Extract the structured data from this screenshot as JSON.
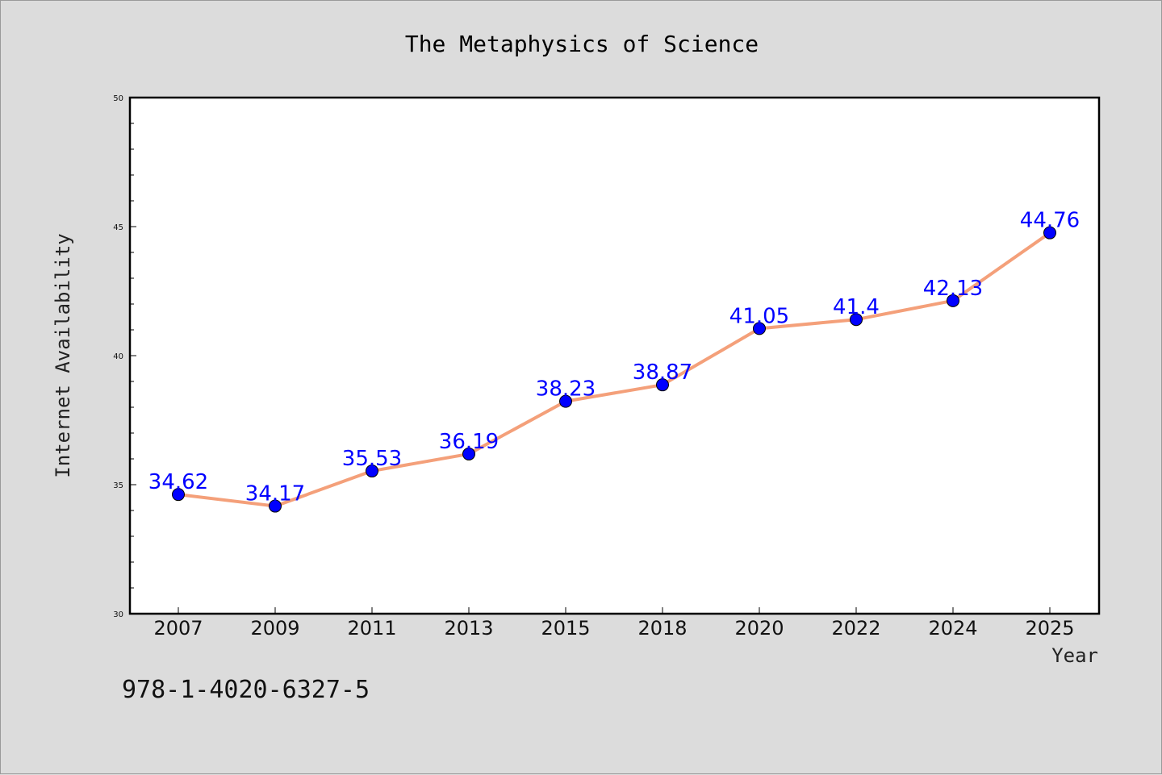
{
  "chart_data": {
    "type": "line",
    "title": "The Metaphysics of Science",
    "xlabel": "Year",
    "ylabel": "Internet Availability",
    "categories": [
      "2007",
      "2009",
      "2011",
      "2013",
      "2015",
      "2018",
      "2020",
      "2022",
      "2024",
      "2025"
    ],
    "series": [
      {
        "values": [
          34.62,
          34.17,
          35.53,
          36.19,
          38.23,
          38.87,
          41.05,
          41.4,
          42.13,
          44.76
        ],
        "labels": [
          "34.62",
          "34.17",
          "35.53",
          "36.19",
          "38.23",
          "38.87",
          "41.05",
          "41.4",
          "42.13",
          "44.76"
        ],
        "line_color": "#f4a07a",
        "marker_color": "#0000ff"
      }
    ],
    "ylim": [
      30,
      50
    ],
    "yticks": [
      "30",
      "35",
      "40",
      "45",
      "50"
    ],
    "grid": false
  },
  "footer": {
    "isbn": "978-1-4020-6327-5"
  }
}
